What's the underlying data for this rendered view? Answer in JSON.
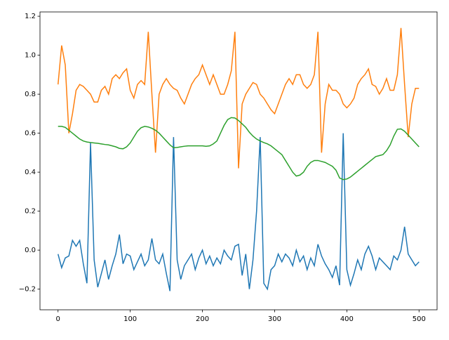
{
  "chart_data": {
    "type": "line",
    "x": [
      0,
      5,
      10,
      15,
      20,
      25,
      30,
      35,
      40,
      45,
      50,
      55,
      60,
      65,
      70,
      75,
      80,
      85,
      90,
      95,
      100,
      105,
      110,
      115,
      120,
      125,
      130,
      135,
      140,
      145,
      150,
      155,
      160,
      165,
      170,
      175,
      180,
      185,
      190,
      195,
      200,
      205,
      210,
      215,
      220,
      225,
      230,
      235,
      240,
      245,
      250,
      255,
      260,
      265,
      270,
      275,
      280,
      285,
      290,
      295,
      300,
      305,
      310,
      315,
      320,
      325,
      330,
      335,
      340,
      345,
      350,
      355,
      360,
      365,
      370,
      375,
      380,
      385,
      390,
      395,
      400,
      405,
      410,
      415,
      420,
      425,
      430,
      435,
      440,
      445,
      450,
      455,
      460,
      465,
      470,
      475,
      480,
      485,
      490,
      495,
      500
    ],
    "series": [
      {
        "color": "#1f77b4",
        "values": [
          -0.02,
          -0.09,
          -0.04,
          -0.03,
          0.05,
          0.02,
          0.05,
          -0.07,
          -0.17,
          0.55,
          -0.05,
          -0.19,
          -0.12,
          -0.05,
          -0.15,
          -0.08,
          -0.02,
          0.08,
          -0.07,
          -0.02,
          -0.03,
          -0.1,
          -0.06,
          -0.02,
          -0.08,
          -0.05,
          0.06,
          -0.05,
          -0.07,
          -0.02,
          -0.12,
          -0.21,
          0.58,
          -0.05,
          -0.15,
          -0.08,
          -0.05,
          -0.02,
          -0.1,
          -0.04,
          0.0,
          -0.07,
          -0.03,
          -0.08,
          -0.04,
          -0.07,
          0.0,
          -0.03,
          -0.05,
          0.02,
          0.03,
          -0.13,
          -0.02,
          -0.2,
          -0.05,
          0.2,
          0.58,
          -0.17,
          -0.2,
          -0.1,
          -0.08,
          -0.02,
          -0.06,
          -0.02,
          -0.04,
          -0.08,
          0.0,
          -0.06,
          -0.03,
          -0.1,
          -0.04,
          -0.08,
          0.03,
          -0.03,
          -0.07,
          -0.1,
          -0.14,
          -0.08,
          -0.18,
          0.6,
          -0.1,
          -0.18,
          -0.12,
          -0.05,
          -0.1,
          -0.02,
          0.02,
          -0.03,
          -0.1,
          -0.04,
          -0.06,
          -0.08,
          -0.1,
          -0.03,
          -0.05,
          0.0,
          0.12,
          -0.02,
          -0.05,
          -0.08,
          -0.06
        ]
      },
      {
        "color": "#ff7f0e",
        "values": [
          0.85,
          1.05,
          0.95,
          0.6,
          0.7,
          0.82,
          0.85,
          0.84,
          0.82,
          0.8,
          0.76,
          0.76,
          0.82,
          0.84,
          0.8,
          0.88,
          0.9,
          0.88,
          0.91,
          0.93,
          0.82,
          0.78,
          0.85,
          0.87,
          0.85,
          1.12,
          0.8,
          0.5,
          0.8,
          0.85,
          0.88,
          0.85,
          0.83,
          0.82,
          0.78,
          0.75,
          0.8,
          0.85,
          0.88,
          0.9,
          0.95,
          0.9,
          0.85,
          0.9,
          0.85,
          0.8,
          0.8,
          0.85,
          0.92,
          1.12,
          0.42,
          0.75,
          0.8,
          0.83,
          0.86,
          0.85,
          0.8,
          0.78,
          0.75,
          0.72,
          0.7,
          0.75,
          0.8,
          0.85,
          0.88,
          0.85,
          0.9,
          0.9,
          0.85,
          0.83,
          0.85,
          0.9,
          1.12,
          0.5,
          0.75,
          0.85,
          0.82,
          0.82,
          0.8,
          0.75,
          0.73,
          0.75,
          0.78,
          0.85,
          0.88,
          0.9,
          0.93,
          0.85,
          0.84,
          0.8,
          0.83,
          0.88,
          0.82,
          0.82,
          0.9,
          1.14,
          0.85,
          0.58,
          0.75,
          0.83,
          0.83
        ]
      },
      {
        "color": "#2ca02c",
        "values": [
          0.635,
          0.635,
          0.63,
          0.615,
          0.6,
          0.585,
          0.57,
          0.56,
          0.555,
          0.552,
          0.55,
          0.548,
          0.545,
          0.542,
          0.54,
          0.535,
          0.53,
          0.522,
          0.52,
          0.53,
          0.55,
          0.58,
          0.61,
          0.628,
          0.635,
          0.632,
          0.625,
          0.615,
          0.6,
          0.58,
          0.56,
          0.54,
          0.525,
          0.527,
          0.53,
          0.533,
          0.535,
          0.535,
          0.535,
          0.535,
          0.535,
          0.533,
          0.535,
          0.545,
          0.56,
          0.6,
          0.64,
          0.67,
          0.68,
          0.678,
          0.665,
          0.648,
          0.63,
          0.605,
          0.585,
          0.57,
          0.56,
          0.552,
          0.545,
          0.535,
          0.52,
          0.505,
          0.49,
          0.46,
          0.43,
          0.4,
          0.38,
          0.385,
          0.4,
          0.43,
          0.45,
          0.46,
          0.46,
          0.455,
          0.45,
          0.44,
          0.43,
          0.41,
          0.37,
          0.362,
          0.365,
          0.375,
          0.39,
          0.405,
          0.42,
          0.435,
          0.45,
          0.465,
          0.48,
          0.485,
          0.49,
          0.51,
          0.54,
          0.585,
          0.62,
          0.622,
          0.61,
          0.59,
          0.57,
          0.55,
          0.53
        ]
      }
    ],
    "xlim": [
      -25,
      525
    ],
    "ylim": [
      -0.306,
      1.222
    ],
    "xticks": [
      0,
      100,
      200,
      300,
      400,
      500
    ],
    "yticks": [
      {
        "value": -0.2,
        "label": "−0.2"
      },
      {
        "value": 0,
        "label": "0.0"
      },
      0.2,
      0.4,
      0.6,
      0.8,
      {
        "value": 1,
        "label": "1.0"
      },
      1.2
    ]
  }
}
